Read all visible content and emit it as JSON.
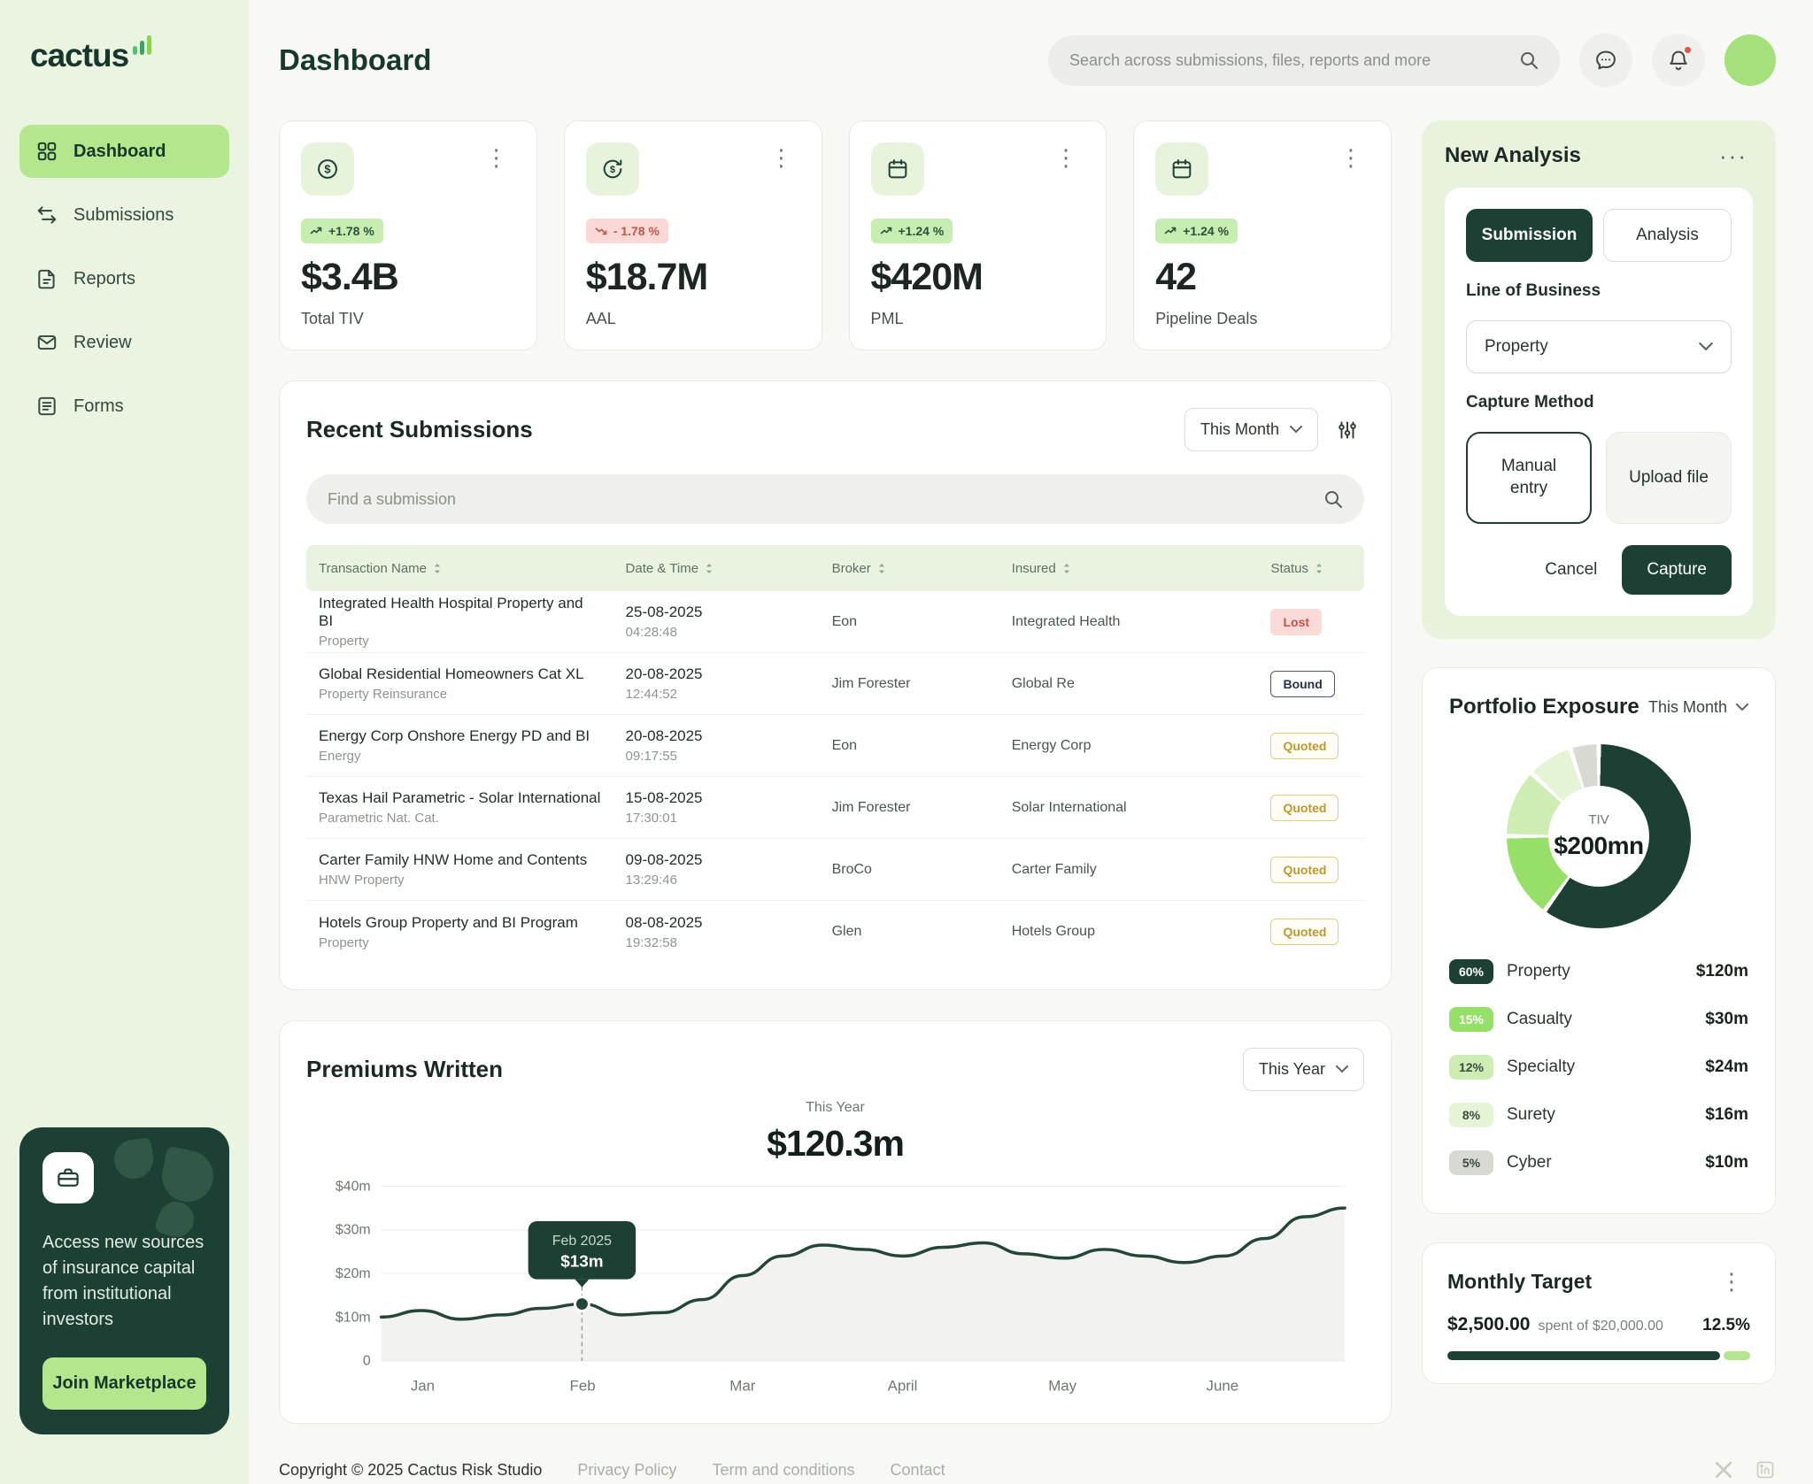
{
  "theme": {
    "dark_green": "#1c4134",
    "light_green": "#b4e78d",
    "sidebar_bg": "#ebf4e1",
    "badge_up_bg": "#c7eeb0",
    "badge_down_bg": "#f9d8d6",
    "status_lost": "#c7504a",
    "status_quoted": "#c2972a"
  },
  "brand": {
    "name": "cactus"
  },
  "sidebar": {
    "items": [
      {
        "label": "Dashboard"
      },
      {
        "label": "Submissions"
      },
      {
        "label": "Reports"
      },
      {
        "label": "Review"
      },
      {
        "label": "Forms"
      }
    ],
    "marketplace": {
      "text": "Access new sources of insurance capital from institutional investors",
      "cta": "Join Marketplace"
    }
  },
  "header": {
    "title": "Dashboard",
    "search_placeholder": "Search across submissions, files, reports and more"
  },
  "stats": [
    {
      "change": "+1.78 %",
      "trend": "up",
      "value": "$3.4B",
      "label": "Total TIV"
    },
    {
      "change": "- 1.78 %",
      "trend": "down",
      "value": "$18.7M",
      "label": "AAL"
    },
    {
      "change": "+1.24 %",
      "trend": "up",
      "value": "$420M",
      "label": "PML"
    },
    {
      "change": "+1.24 %",
      "trend": "up",
      "value": "42",
      "label": "Pipeline Deals"
    }
  ],
  "submissions": {
    "title": "Recent Submissions",
    "period": "This Month",
    "search_placeholder": "Find a submission",
    "columns": [
      "Transaction Name",
      "Date & Time",
      "Broker",
      "Insured",
      "Status"
    ],
    "rows": [
      {
        "name": "Integrated Health Hospital Property and BI",
        "category": "Property",
        "date": "25-08-2025",
        "time": "04:28:48",
        "broker": "Eon",
        "insured": "Integrated Health",
        "status": "Lost"
      },
      {
        "name": "Global Residential Homeowners Cat XL",
        "category": "Property Reinsurance",
        "date": "20-08-2025",
        "time": "12:44:52",
        "broker": "Jim Forester",
        "insured": "Global Re",
        "status": "Bound"
      },
      {
        "name": "Energy Corp Onshore Energy PD and BI",
        "category": "Energy",
        "date": "20-08-2025",
        "time": "09:17:55",
        "broker": "Eon",
        "insured": "Energy Corp",
        "status": "Quoted"
      },
      {
        "name": "Texas Hail Parametric - Solar International",
        "category": "Parametric Nat. Cat.",
        "date": "15-08-2025",
        "time": "17:30:01",
        "broker": "Jim Forester",
        "insured": "Solar International",
        "status": "Quoted"
      },
      {
        "name": "Carter Family HNW Home and Contents",
        "category": "HNW Property",
        "date": "09-08-2025",
        "time": "13:29:46",
        "broker": "BroCo",
        "insured": "Carter Family",
        "status": "Quoted"
      },
      {
        "name": "Hotels Group Property and BI Program",
        "category": "Property",
        "date": "08-08-2025",
        "time": "19:32:58",
        "broker": "Glen",
        "insured": "Hotels Group",
        "status": "Quoted"
      }
    ]
  },
  "premiums": {
    "title": "Premiums Written",
    "period": "This Year",
    "center_label": "This Year",
    "center_value": "$120.3m"
  },
  "analysis": {
    "title": "New Analysis",
    "tabs": {
      "submission": "Submission",
      "analysis": "Analysis"
    },
    "line_of_business_label": "Line of Business",
    "line_of_business_value": "Property",
    "capture_method_label": "Capture Method",
    "manual_entry": "Manual entry",
    "upload_file": "Upload file",
    "cancel": "Cancel",
    "capture": "Capture"
  },
  "portfolio": {
    "title": "Portfolio Exposure",
    "period": "This Month",
    "center_label": "TIV",
    "center_value": "$200mn"
  },
  "monthly_target": {
    "title": "Monthly Target",
    "amount": "$2,500.00",
    "note": "spent of $20,000.00",
    "percent": "12.5%"
  },
  "footer": {
    "copyright": "Copyright © 2025 Cactus Risk Studio",
    "links": [
      "Privacy Policy",
      "Term and conditions",
      "Contact"
    ]
  },
  "chart_data": [
    {
      "type": "line",
      "title": "Premiums Written — This Year",
      "unit": "$m",
      "total_label": "$120.3m",
      "ylim": [
        0,
        40
      ],
      "yticks": [
        {
          "v": 40,
          "label": "$40m"
        },
        {
          "v": 30,
          "label": "$30m"
        },
        {
          "v": 20,
          "label": "$20m"
        },
        {
          "v": 10,
          "label": "$10m"
        },
        {
          "v": 0,
          "label": "0"
        }
      ],
      "months": [
        {
          "label": "Jan",
          "f": 0.043
        },
        {
          "label": "Feb",
          "f": 0.209
        },
        {
          "label": "Mar",
          "f": 0.375
        },
        {
          "label": "April",
          "f": 0.541
        },
        {
          "label": "May",
          "f": 0.707
        },
        {
          "label": "June",
          "f": 0.873
        }
      ],
      "values": [
        10,
        11.5,
        9.5,
        10.5,
        12,
        13,
        10.5,
        11,
        14,
        19.5,
        24,
        26.5,
        25.5,
        24,
        26,
        27,
        24.5,
        23.5,
        25.5,
        24,
        22.5,
        24,
        28,
        33,
        35
      ],
      "highlight": {
        "index": 5,
        "label": "Feb 2025",
        "value": "$13m"
      }
    },
    {
      "type": "donut",
      "title": "Portfolio Exposure",
      "center": {
        "label": "TIV",
        "value": "$200mn"
      },
      "segments": [
        {
          "name": "Property",
          "pct": "60%",
          "value": 60,
          "amount": "$120m",
          "color": "#1c4134",
          "text": "#ffffff"
        },
        {
          "name": "Casualty",
          "pct": "15%",
          "value": 15,
          "amount": "$30m",
          "color": "#96df68",
          "text": "#ffffff"
        },
        {
          "name": "Specialty",
          "pct": "12%",
          "value": 12,
          "amount": "$24m",
          "color": "#cdedb2",
          "text": "#3c4a40"
        },
        {
          "name": "Surety",
          "pct": "8%",
          "value": 8,
          "amount": "$16m",
          "color": "#e6f4d6",
          "text": "#3c4a40"
        },
        {
          "name": "Cyber",
          "pct": "5%",
          "value": 5,
          "amount": "$10m",
          "color": "#d9d9d4",
          "text": "#3c4a40"
        }
      ]
    }
  ]
}
